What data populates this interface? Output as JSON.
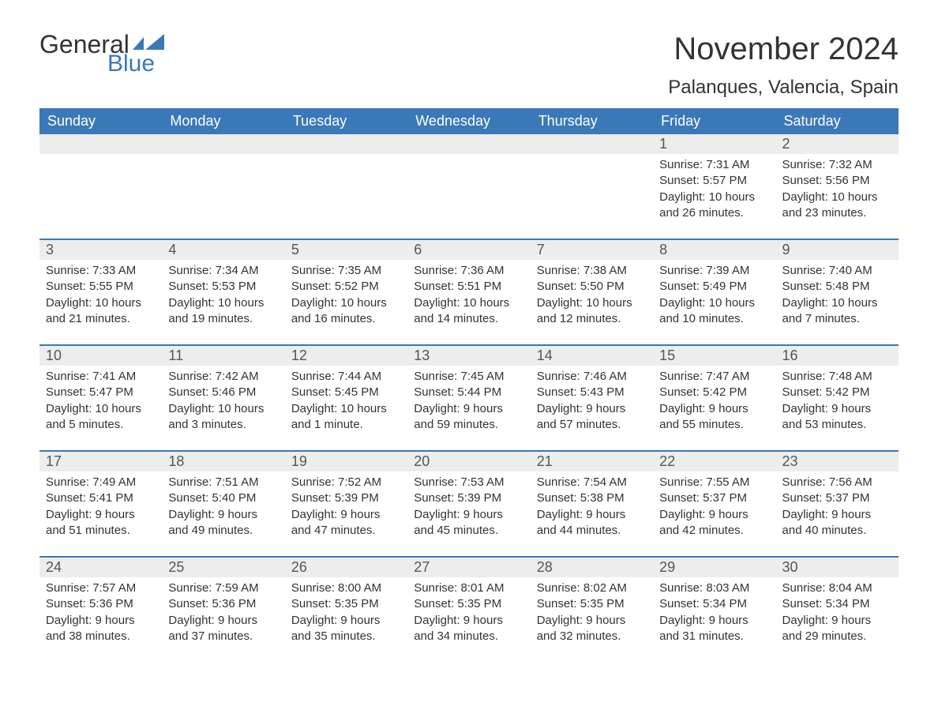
{
  "brand": {
    "word1": "General",
    "word2": "Blue",
    "word1_color": "#333333",
    "word2_color": "#3b78b8",
    "flag_color": "#3b78b8"
  },
  "title": "November 2024",
  "location": "Palanques, Valencia, Spain",
  "colors": {
    "header_bg": "#3b78b8",
    "header_text": "#ffffff",
    "daynum_bg": "#ededed",
    "daynum_text": "#555555",
    "body_text": "#333333",
    "week_divider": "#3b78b8",
    "page_bg": "#ffffff"
  },
  "typography": {
    "title_fontsize": 40,
    "location_fontsize": 24,
    "header_fontsize": 18,
    "daynum_fontsize": 18,
    "body_fontsize": 15
  },
  "day_headers": [
    "Sunday",
    "Monday",
    "Tuesday",
    "Wednesday",
    "Thursday",
    "Friday",
    "Saturday"
  ],
  "labels": {
    "sunrise": "Sunrise:",
    "sunset": "Sunset:",
    "daylight": "Daylight:"
  },
  "weeks": [
    [
      null,
      null,
      null,
      null,
      null,
      {
        "n": "1",
        "sunrise": "7:31 AM",
        "sunset": "5:57 PM",
        "daylight": "10 hours and 26 minutes."
      },
      {
        "n": "2",
        "sunrise": "7:32 AM",
        "sunset": "5:56 PM",
        "daylight": "10 hours and 23 minutes."
      }
    ],
    [
      {
        "n": "3",
        "sunrise": "7:33 AM",
        "sunset": "5:55 PM",
        "daylight": "10 hours and 21 minutes."
      },
      {
        "n": "4",
        "sunrise": "7:34 AM",
        "sunset": "5:53 PM",
        "daylight": "10 hours and 19 minutes."
      },
      {
        "n": "5",
        "sunrise": "7:35 AM",
        "sunset": "5:52 PM",
        "daylight": "10 hours and 16 minutes."
      },
      {
        "n": "6",
        "sunrise": "7:36 AM",
        "sunset": "5:51 PM",
        "daylight": "10 hours and 14 minutes."
      },
      {
        "n": "7",
        "sunrise": "7:38 AM",
        "sunset": "5:50 PM",
        "daylight": "10 hours and 12 minutes."
      },
      {
        "n": "8",
        "sunrise": "7:39 AM",
        "sunset": "5:49 PM",
        "daylight": "10 hours and 10 minutes."
      },
      {
        "n": "9",
        "sunrise": "7:40 AM",
        "sunset": "5:48 PM",
        "daylight": "10 hours and 7 minutes."
      }
    ],
    [
      {
        "n": "10",
        "sunrise": "7:41 AM",
        "sunset": "5:47 PM",
        "daylight": "10 hours and 5 minutes."
      },
      {
        "n": "11",
        "sunrise": "7:42 AM",
        "sunset": "5:46 PM",
        "daylight": "10 hours and 3 minutes."
      },
      {
        "n": "12",
        "sunrise": "7:44 AM",
        "sunset": "5:45 PM",
        "daylight": "10 hours and 1 minute."
      },
      {
        "n": "13",
        "sunrise": "7:45 AM",
        "sunset": "5:44 PM",
        "daylight": "9 hours and 59 minutes."
      },
      {
        "n": "14",
        "sunrise": "7:46 AM",
        "sunset": "5:43 PM",
        "daylight": "9 hours and 57 minutes."
      },
      {
        "n": "15",
        "sunrise": "7:47 AM",
        "sunset": "5:42 PM",
        "daylight": "9 hours and 55 minutes."
      },
      {
        "n": "16",
        "sunrise": "7:48 AM",
        "sunset": "5:42 PM",
        "daylight": "9 hours and 53 minutes."
      }
    ],
    [
      {
        "n": "17",
        "sunrise": "7:49 AM",
        "sunset": "5:41 PM",
        "daylight": "9 hours and 51 minutes."
      },
      {
        "n": "18",
        "sunrise": "7:51 AM",
        "sunset": "5:40 PM",
        "daylight": "9 hours and 49 minutes."
      },
      {
        "n": "19",
        "sunrise": "7:52 AM",
        "sunset": "5:39 PM",
        "daylight": "9 hours and 47 minutes."
      },
      {
        "n": "20",
        "sunrise": "7:53 AM",
        "sunset": "5:39 PM",
        "daylight": "9 hours and 45 minutes."
      },
      {
        "n": "21",
        "sunrise": "7:54 AM",
        "sunset": "5:38 PM",
        "daylight": "9 hours and 44 minutes."
      },
      {
        "n": "22",
        "sunrise": "7:55 AM",
        "sunset": "5:37 PM",
        "daylight": "9 hours and 42 minutes."
      },
      {
        "n": "23",
        "sunrise": "7:56 AM",
        "sunset": "5:37 PM",
        "daylight": "9 hours and 40 minutes."
      }
    ],
    [
      {
        "n": "24",
        "sunrise": "7:57 AM",
        "sunset": "5:36 PM",
        "daylight": "9 hours and 38 minutes."
      },
      {
        "n": "25",
        "sunrise": "7:59 AM",
        "sunset": "5:36 PM",
        "daylight": "9 hours and 37 minutes."
      },
      {
        "n": "26",
        "sunrise": "8:00 AM",
        "sunset": "5:35 PM",
        "daylight": "9 hours and 35 minutes."
      },
      {
        "n": "27",
        "sunrise": "8:01 AM",
        "sunset": "5:35 PM",
        "daylight": "9 hours and 34 minutes."
      },
      {
        "n": "28",
        "sunrise": "8:02 AM",
        "sunset": "5:35 PM",
        "daylight": "9 hours and 32 minutes."
      },
      {
        "n": "29",
        "sunrise": "8:03 AM",
        "sunset": "5:34 PM",
        "daylight": "9 hours and 31 minutes."
      },
      {
        "n": "30",
        "sunrise": "8:04 AM",
        "sunset": "5:34 PM",
        "daylight": "9 hours and 29 minutes."
      }
    ]
  ]
}
